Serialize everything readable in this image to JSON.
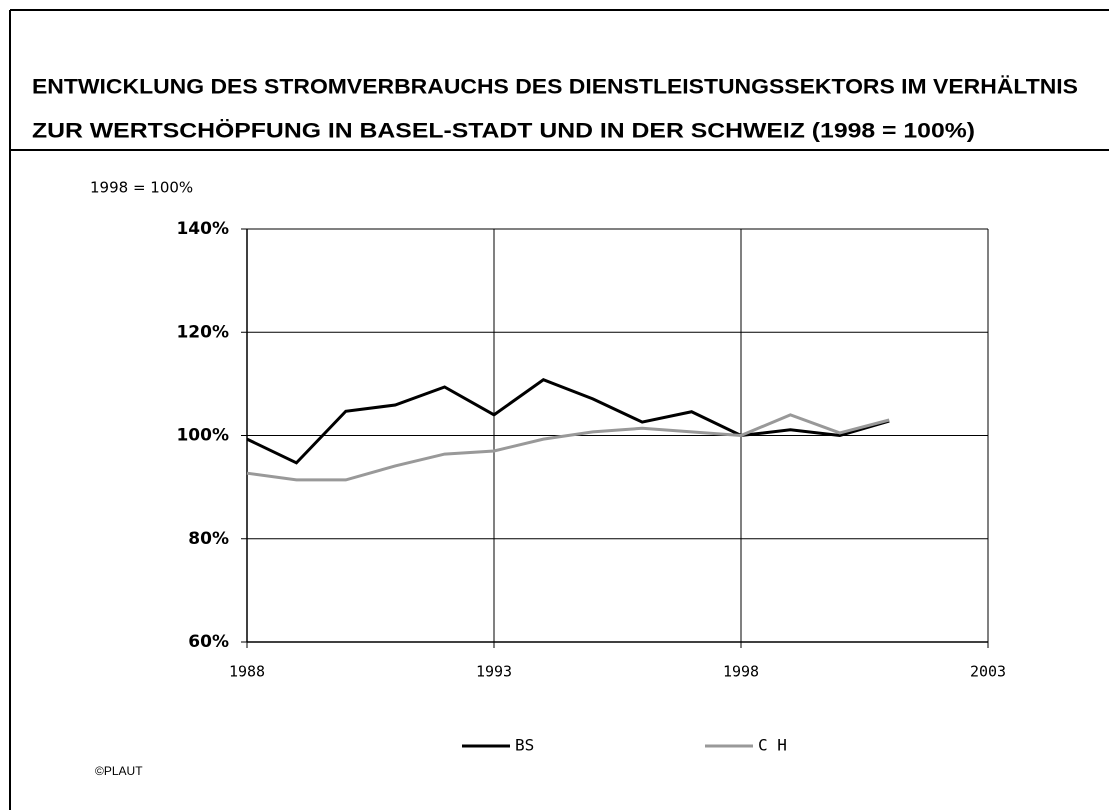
{
  "chart_data": {
    "type": "line",
    "title": [
      "ENTWICKLUNG DES STROMVERBRAUCHS DES DIENSTLEISTUNGSSEKTORS IM VERHÄLTNIS",
      "ZUR WERTSCHÖPFUNG IN BASEL-STADT UND IN DER SCHWEIZ (1998 = 100%)"
    ],
    "y_label": "1998 = 100%",
    "credit": "©PLAUT",
    "x": [
      1988,
      1989,
      1990,
      1991,
      1992,
      1993,
      1994,
      1995,
      1996,
      1997,
      1998,
      1999,
      2000,
      2001
    ],
    "series": [
      {
        "name": "BS",
        "color": "#000000",
        "values": [
          99.3,
          94.7,
          104.7,
          105.9,
          109.4,
          104.0,
          110.8,
          107.1,
          102.6,
          104.6,
          100,
          101.1,
          100,
          102.8
        ]
      },
      {
        "name": "C H",
        "color": "#999999",
        "values": [
          92.7,
          91.4,
          91.4,
          94.1,
          96.4,
          97.0,
          99.3,
          100.7,
          101.4,
          100.7,
          100,
          104.0,
          100.5,
          103.0
        ]
      }
    ],
    "xlim": [
      1988,
      2003
    ],
    "xticks": [
      1988,
      1993,
      1998,
      2003
    ],
    "ylim": [
      60,
      140
    ],
    "yticks": [
      {
        "value": 60,
        "label": "60%"
      },
      {
        "value": 80,
        "label": "80%"
      },
      {
        "value": 100,
        "label": "100%"
      },
      {
        "value": 120,
        "label": "120%"
      },
      {
        "value": 140,
        "label": "140%"
      }
    ],
    "grid": true,
    "legend": "bottom"
  }
}
